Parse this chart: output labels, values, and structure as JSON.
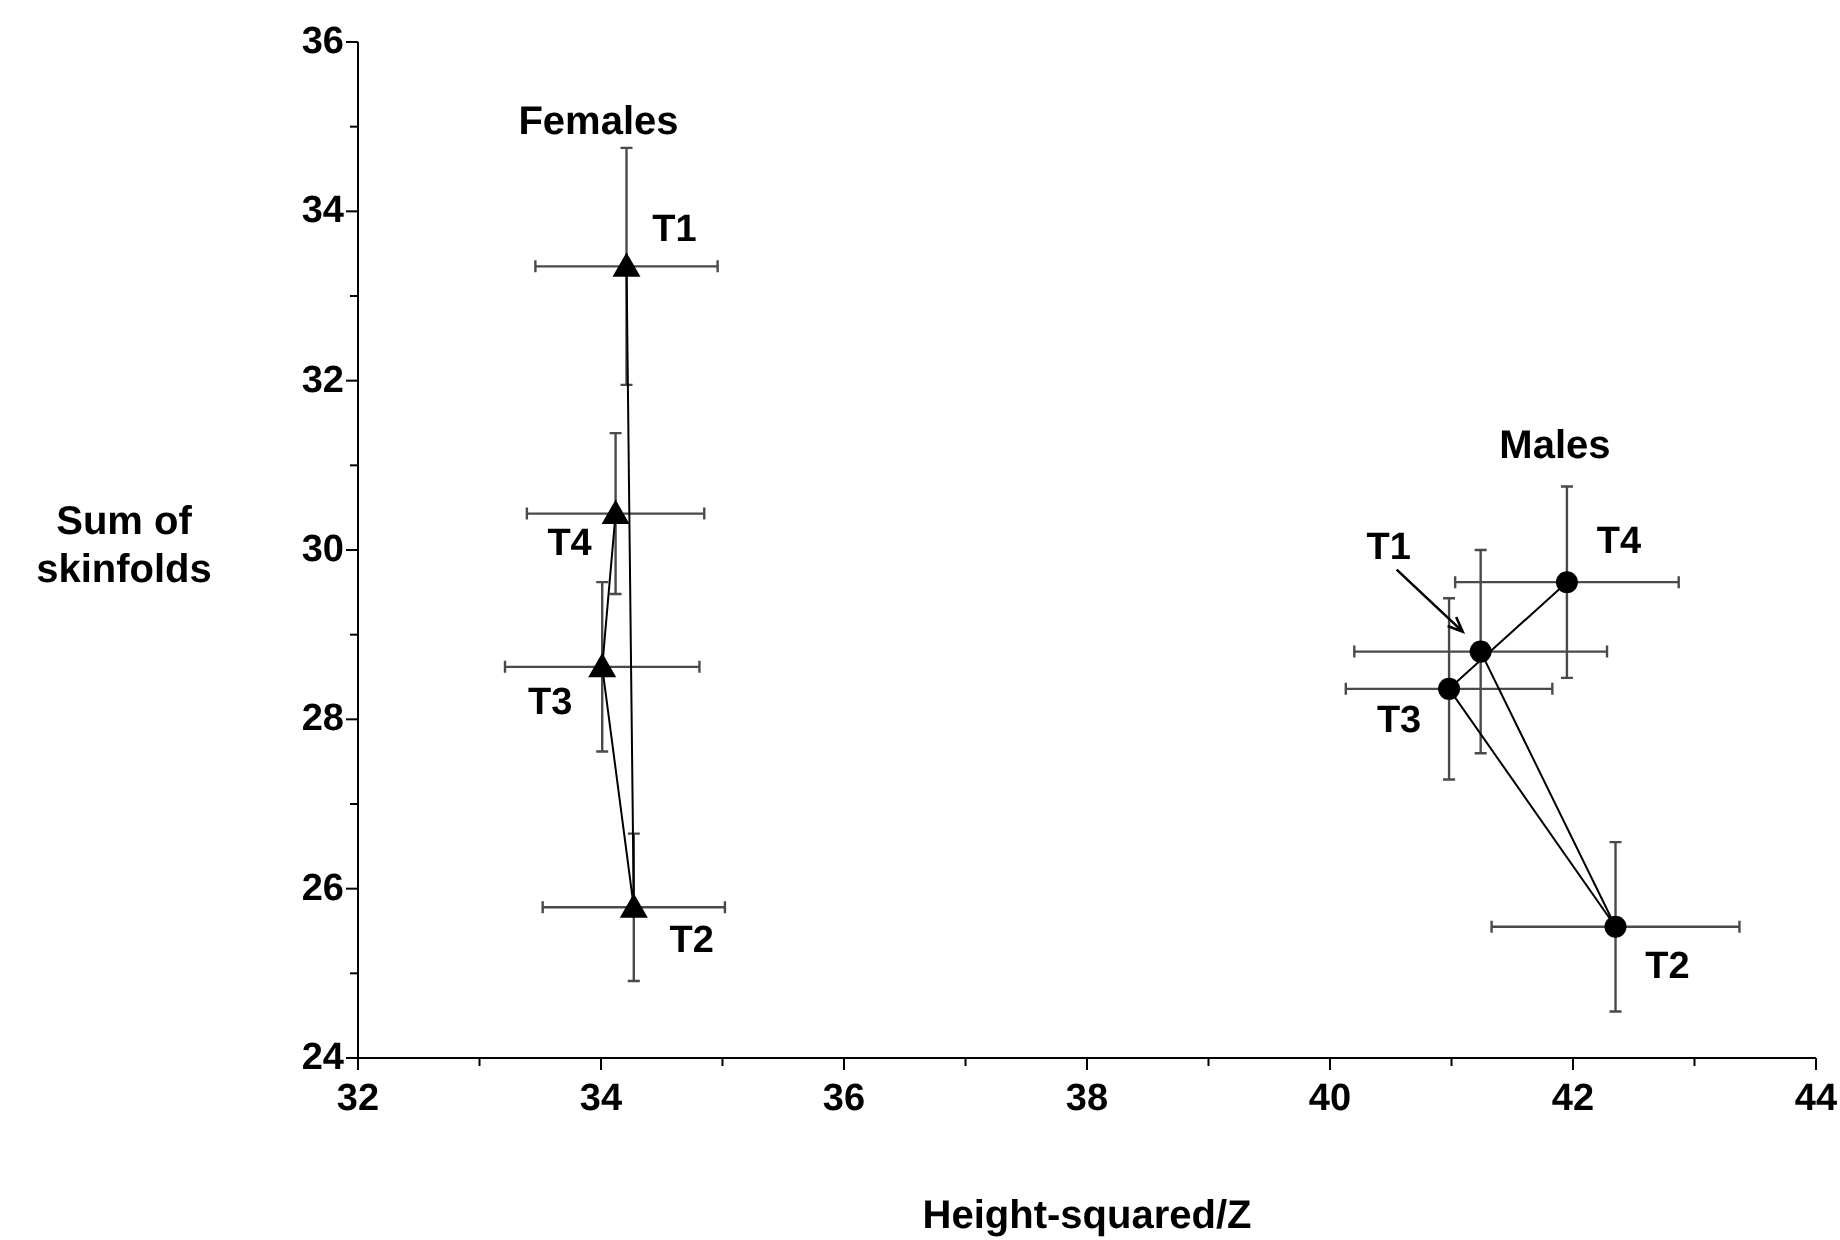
{
  "chart_data": {
    "type": "line",
    "xlabel": "Height-squared/Z",
    "ylabel": "Sum of skinfolds",
    "line_style": "solid",
    "xlim": [
      32,
      44
    ],
    "xticks": [
      32,
      {
        "value": 33,
        "label": null
      },
      34,
      {
        "value": 35,
        "label": null
      },
      36,
      {
        "value": 37,
        "label": null
      },
      38,
      {
        "value": 39,
        "label": null
      },
      40,
      {
        "value": 41,
        "label": null
      },
      42,
      {
        "value": 43,
        "label": null
      },
      44
    ],
    "ylim": [
      24,
      36
    ],
    "yticks": [
      24,
      {
        "value": 25,
        "label": null
      },
      26,
      {
        "value": 27,
        "label": null
      },
      28,
      {
        "value": 29,
        "label": null
      },
      30,
      {
        "value": 31,
        "label": null
      },
      32,
      {
        "value": 33,
        "label": null
      },
      34,
      {
        "value": 35,
        "label": null
      },
      36
    ],
    "series": [
      {
        "name": "Females",
        "color": "#000000",
        "marker": "triangle",
        "x": [
          34.21,
          34.27,
          34.01,
          34.12
        ],
        "values": [
          33.35,
          25.78,
          28.62,
          30.43
        ],
        "errors": [
          1.4,
          0.87,
          1.0,
          0.95
        ],
        "xerrors": [
          0.75,
          0.75,
          0.8,
          0.73
        ]
      },
      {
        "name": "Males",
        "color": "#000000",
        "marker": "circle",
        "x": [
          41.24,
          42.35,
          40.98,
          41.95
        ],
        "values": [
          28.8,
          25.55,
          28.36,
          29.62
        ],
        "errors": [
          1.2,
          1.0,
          1.07,
          1.13
        ],
        "xerrors": [
          1.04,
          1.02,
          0.85,
          0.92
        ]
      }
    ],
    "annotations": [
      {
        "text": "T1",
        "x": 34.21,
        "y": 33.35
      },
      {
        "text": "T2",
        "x": 34.27,
        "y": 25.78
      },
      {
        "text": "T3",
        "x": 34.01,
        "y": 28.62
      },
      {
        "text": "T4",
        "x": 34.12,
        "y": 30.43
      },
      {
        "text": "T1",
        "x": 41.24,
        "y": 28.8
      },
      {
        "text": "T2",
        "x": 42.35,
        "y": 25.55
      },
      {
        "text": "T3",
        "x": 40.98,
        "y": 28.36
      },
      {
        "text": "T4",
        "x": 41.95,
        "y": 29.62
      }
    ]
  }
}
